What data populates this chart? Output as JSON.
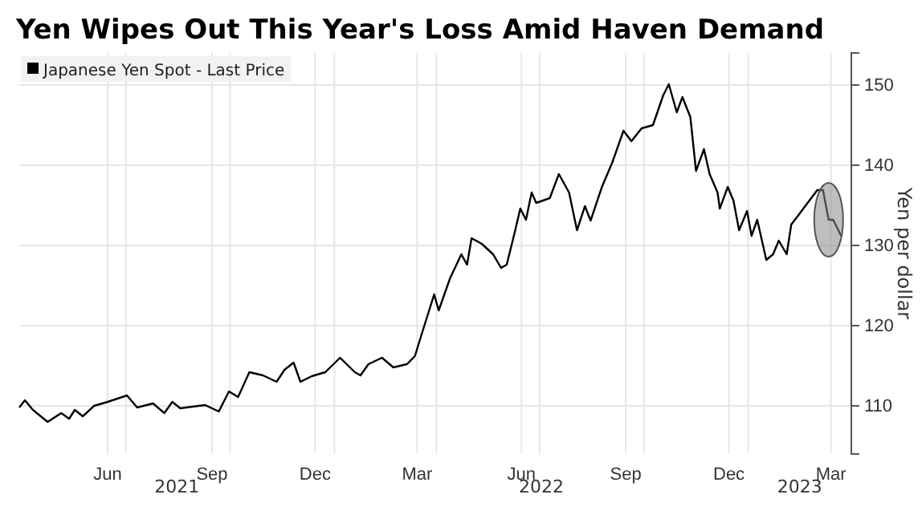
{
  "chart_data": {
    "type": "line",
    "title": "Yen Wipes Out This Year's Loss Amid Haven Demand",
    "ylabel": "Yen per dollar",
    "x": [
      "2021-03-29",
      "2021-04-03",
      "2021-04-10",
      "2021-04-23",
      "2021-05-05",
      "2021-05-12",
      "2021-05-17",
      "2021-05-24",
      "2021-06-03",
      "2021-06-15",
      "2021-07-02",
      "2021-07-11",
      "2021-07-25",
      "2021-08-04",
      "2021-08-11",
      "2021-08-18",
      "2021-09-09",
      "2021-09-21",
      "2021-09-30",
      "2021-10-08",
      "2021-10-18",
      "2021-10-30",
      "2021-11-11",
      "2021-11-18",
      "2021-11-26",
      "2021-12-02",
      "2021-12-12",
      "2021-12-24",
      "2022-01-06",
      "2022-01-19",
      "2022-01-24",
      "2022-01-31",
      "2022-02-12",
      "2022-02-22",
      "2022-03-06",
      "2022-03-13",
      "2022-03-18",
      "2022-03-30",
      "2022-04-03",
      "2022-04-13",
      "2022-04-23",
      "2022-04-28",
      "2022-05-02",
      "2022-05-11",
      "2022-05-21",
      "2022-05-28",
      "2022-06-02",
      "2022-06-09",
      "2022-06-14",
      "2022-06-19",
      "2022-06-24",
      "2022-06-28",
      "2022-07-10",
      "2022-07-18",
      "2022-07-27",
      "2022-08-03",
      "2022-08-10",
      "2022-08-15",
      "2022-08-25",
      "2022-09-03",
      "2022-09-13",
      "2022-09-20",
      "2022-09-29",
      "2022-10-09",
      "2022-10-18",
      "2022-10-23",
      "2022-10-30",
      "2022-11-04",
      "2022-11-11",
      "2022-11-16",
      "2022-11-23",
      "2022-11-28",
      "2022-12-05",
      "2022-12-07",
      "2022-12-14",
      "2022-12-19",
      "2022-12-24",
      "2022-12-31",
      "2023-01-04",
      "2023-01-09",
      "2023-01-17",
      "2023-01-23",
      "2023-01-28",
      "2023-02-04",
      "2023-02-08",
      "2023-02-15",
      "2023-02-24",
      "2023-03-03",
      "2023-03-08",
      "2023-03-13",
      "2023-03-17",
      "2023-03-24"
    ],
    "series": [
      {
        "name": "Japanese Yen Spot - Last Price",
        "color": "#000000",
        "values": [
          109.8,
          110.7,
          109.5,
          108.0,
          109.1,
          108.4,
          109.5,
          108.7,
          110.0,
          110.5,
          111.3,
          109.8,
          110.3,
          109.1,
          110.5,
          109.7,
          110.1,
          109.3,
          111.8,
          111.1,
          114.2,
          113.8,
          113.0,
          114.5,
          115.4,
          113.0,
          113.7,
          114.2,
          116.0,
          114.2,
          113.8,
          115.2,
          116.0,
          114.8,
          115.2,
          116.2,
          118.5,
          123.9,
          121.9,
          125.9,
          128.9,
          127.6,
          130.9,
          130.2,
          128.9,
          127.2,
          127.6,
          131.6,
          134.6,
          133.2,
          136.6,
          135.3,
          135.9,
          138.9,
          136.6,
          131.9,
          134.9,
          133.1,
          137.3,
          140.3,
          144.3,
          143.0,
          144.6,
          145.0,
          148.7,
          150.1,
          146.6,
          148.5,
          146.0,
          139.3,
          142.0,
          138.9,
          136.6,
          134.6,
          137.3,
          135.6,
          131.9,
          134.3,
          131.2,
          133.2,
          128.2,
          128.9,
          130.6,
          128.9,
          132.6,
          133.9,
          135.6,
          136.9,
          136.9,
          133.2,
          133.2,
          131.2
        ]
      }
    ],
    "xlim": [
      "2021-03-29",
      "2023-04-02"
    ],
    "xticks": [
      {
        "value": "2021-06-15",
        "label": "Jun"
      },
      {
        "value": "2021-07-01",
        "label": null
      },
      {
        "value": "2021-09-15",
        "label": "Sep"
      },
      {
        "value": "2021-10-01",
        "label": null
      },
      {
        "value": "2021-12-15",
        "label": "Dec"
      },
      {
        "value": "2022-01-01",
        "label": null
      },
      {
        "value": "2022-03-15",
        "label": "Mar"
      },
      {
        "value": "2022-04-01",
        "label": null
      },
      {
        "value": "2022-06-15",
        "label": "Jun"
      },
      {
        "value": "2022-07-01",
        "label": null
      },
      {
        "value": "2022-09-15",
        "label": "Sep"
      },
      {
        "value": "2022-10-01",
        "label": null
      },
      {
        "value": "2022-12-15",
        "label": "Dec"
      },
      {
        "value": "2023-01-01",
        "label": null
      },
      {
        "value": "2023-03-15",
        "label": "Mar"
      }
    ],
    "annotations": [
      "2021",
      "2022",
      "2023"
    ],
    "ylim": [
      104,
      154
    ],
    "yticks": [
      110,
      120,
      130,
      140,
      150
    ],
    "grid": true,
    "legend": "top left"
  }
}
